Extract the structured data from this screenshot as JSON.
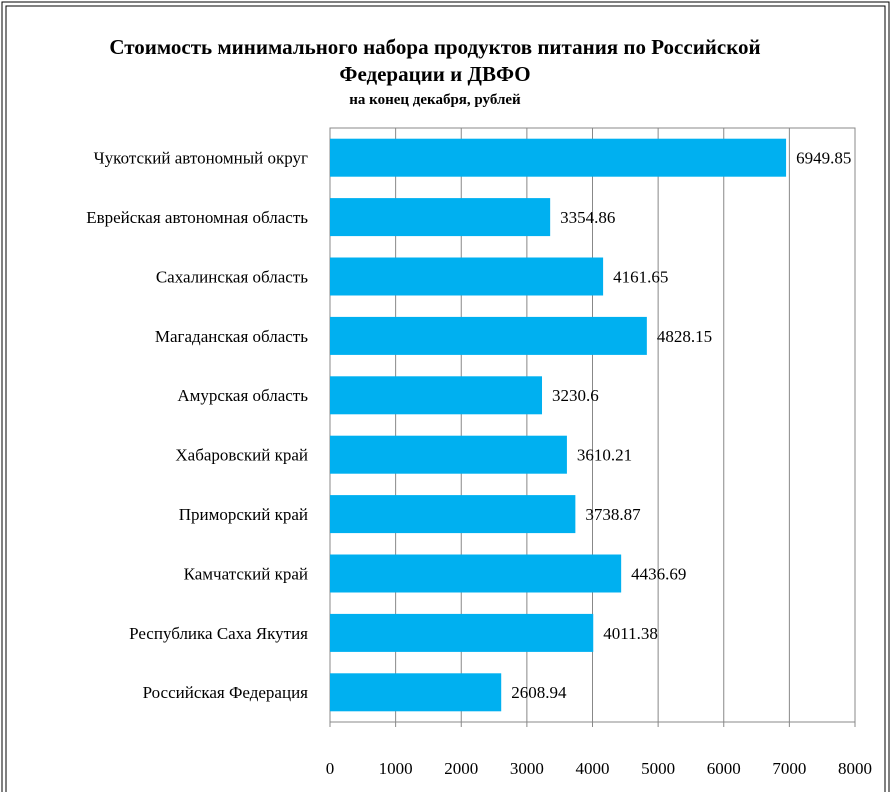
{
  "chart_data": {
    "type": "bar",
    "orientation": "horizontal",
    "title": "Стоимость минимального набора продуктов питания по Российской Федерации и ДВФО",
    "subtitle": "на конец декабря, рублей",
    "categories": [
      "Чукотский автономный округ",
      "Еврейская автономная область",
      "Сахалинская область",
      "Магаданская область",
      "Амурская область",
      "Хабаровский край",
      "Приморский край",
      "Камчатский край",
      "Республика Саха Якутия",
      "Российская Федерация"
    ],
    "values": [
      6949.85,
      3354.86,
      4161.65,
      4828.15,
      3230.6,
      3610.21,
      3738.87,
      4436.69,
      4011.38,
      2608.94
    ],
    "color": "#00b0f0",
    "xlim": [
      0,
      8000
    ],
    "xticks": [
      0,
      1000,
      2000,
      3000,
      4000,
      5000,
      6000,
      7000,
      8000
    ],
    "grid": true
  }
}
